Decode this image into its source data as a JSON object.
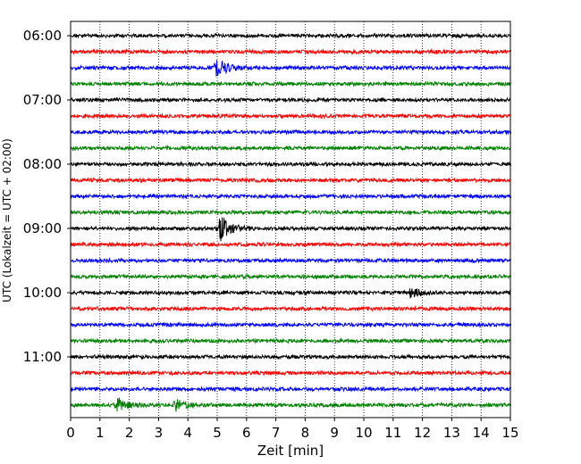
{
  "chart_data": {
    "type": "line",
    "title": "",
    "xlabel": "Zeit  [min]",
    "ylabel": "UTC (Lokalzeit = UTC + 02:00)",
    "xlim": [
      0,
      15
    ],
    "x_ticks": [
      0,
      1,
      2,
      3,
      4,
      5,
      6,
      7,
      8,
      9,
      10,
      11,
      12,
      13,
      14,
      15
    ],
    "y_ticks": [
      "06:00",
      "07:00",
      "08:00",
      "09:00",
      "10:00",
      "11:00"
    ],
    "grid": "vertical dotted lines at each minute",
    "line_interval_minutes": 15,
    "trace_start": "06:00",
    "trace_count": 24,
    "trace_colors": [
      "#000000",
      "#ff0000",
      "#0000ff",
      "#008000"
    ],
    "events": [
      {
        "trace": 2,
        "minute": 5.0,
        "amplitude": 0.7
      },
      {
        "trace": 12,
        "minute": 5.1,
        "amplitude": 1.0
      },
      {
        "trace": 16,
        "minute": 11.6,
        "amplitude": 0.4
      },
      {
        "trace": 23,
        "minute": 1.6,
        "amplitude": 0.5
      },
      {
        "trace": 23,
        "minute": 3.6,
        "amplitude": 0.4
      }
    ]
  }
}
